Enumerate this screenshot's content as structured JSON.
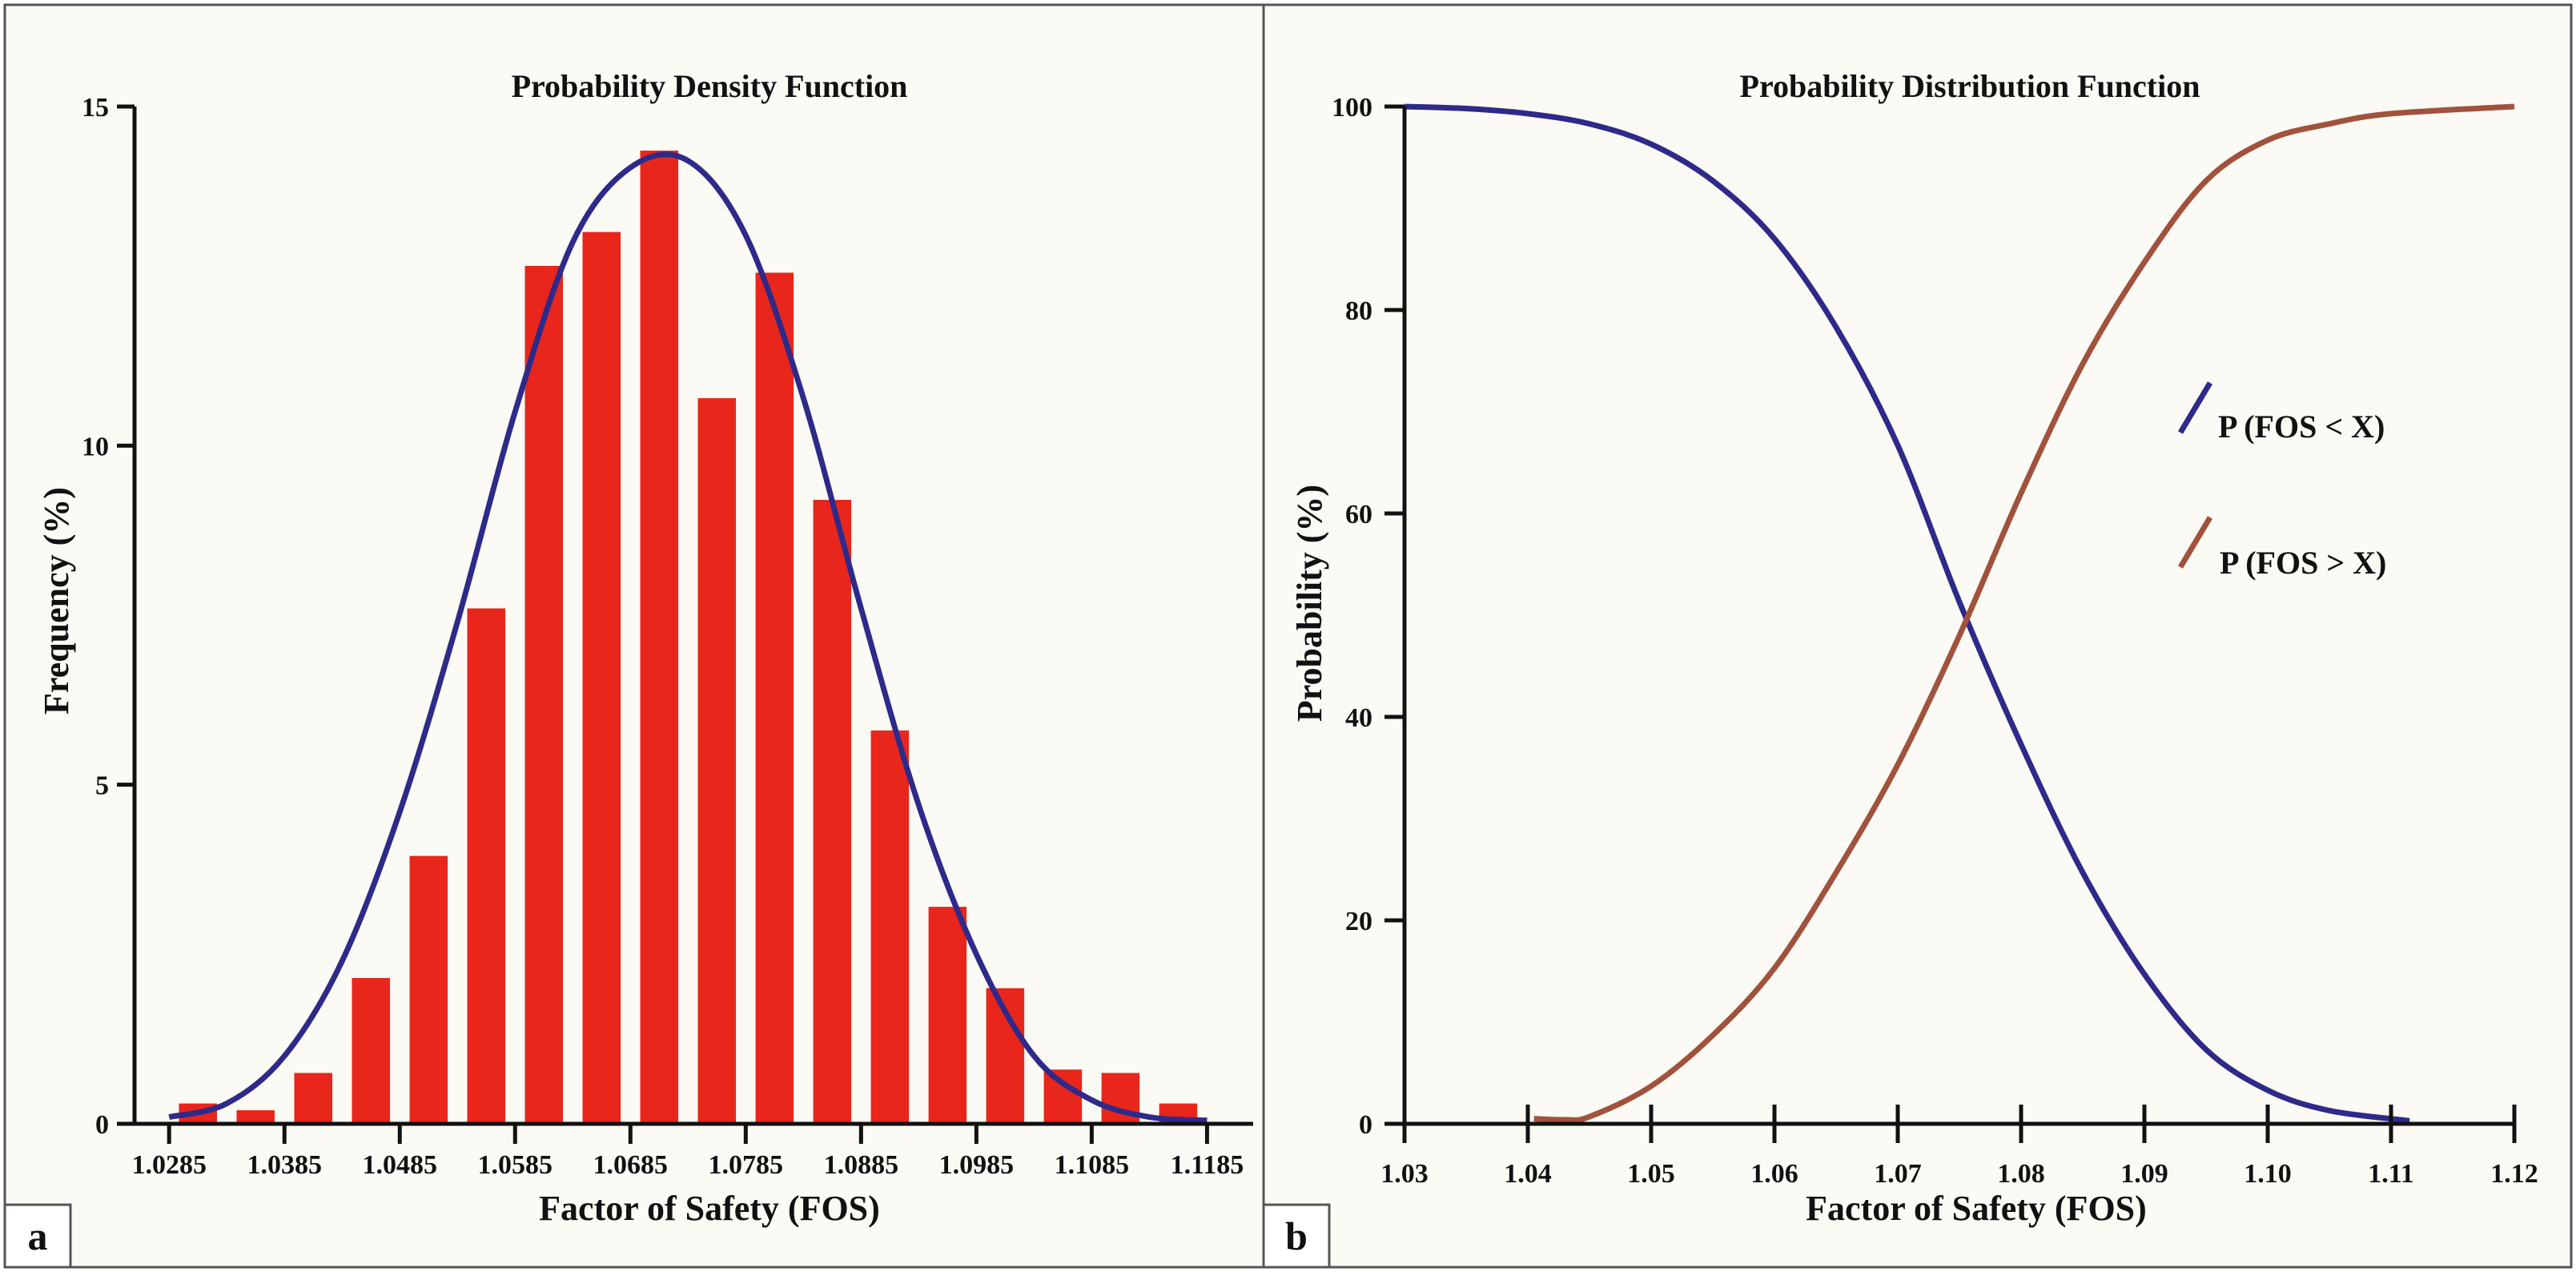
{
  "chart_data": [
    {
      "panel": "a",
      "type": "bar",
      "title": "Probability Density Function",
      "xlabel": "Factor of Safety (FOS)",
      "ylabel": "Frequency (%)",
      "ylim": [
        0,
        15
      ],
      "yticks": [
        0,
        5,
        10,
        15
      ],
      "xticks": [
        "1.0285",
        "1.0385",
        "1.0485",
        "1.0585",
        "1.0685",
        "1.0785",
        "1.0885",
        "1.0985",
        "1.1085",
        "1.1185"
      ],
      "xrange": [
        1.0255,
        1.1225
      ],
      "bar_x": [
        1.031,
        1.036,
        1.041,
        1.046,
        1.051,
        1.056,
        1.061,
        1.066,
        1.071,
        1.076,
        1.081,
        1.086,
        1.091,
        1.096,
        1.101,
        1.106,
        1.111,
        1.116
      ],
      "bar_values": [
        0.3,
        0.2,
        0.75,
        2.15,
        3.95,
        7.6,
        12.65,
        13.15,
        14.35,
        10.7,
        12.55,
        9.2,
        5.8,
        3.2,
        2.0,
        0.8,
        0.75,
        0.3
      ],
      "bar_width": 0.0033,
      "bar_color": "#e8261c",
      "fit_curve": {
        "name": "Normal fit",
        "color": "#2e2a8a",
        "x": [
          1.0285,
          1.0335,
          1.0385,
          1.0435,
          1.0485,
          1.0535,
          1.0585,
          1.0635,
          1.0685,
          1.0735,
          1.0785,
          1.0835,
          1.0885,
          1.0935,
          1.0985,
          1.1035,
          1.1085,
          1.1135,
          1.1185
        ],
        "y": [
          0.1,
          0.3,
          1.0,
          2.4,
          4.6,
          7.4,
          10.5,
          13.0,
          14.1,
          14.2,
          13.1,
          10.7,
          7.6,
          4.7,
          2.5,
          1.0,
          0.35,
          0.1,
          0.05
        ]
      }
    },
    {
      "panel": "b",
      "type": "line",
      "title": "Probability Distribution Function",
      "xlabel": "Factor of Safety (FOS)",
      "ylabel": "Probability (%)",
      "xlim": [
        1.03,
        1.12
      ],
      "ylim": [
        0,
        100
      ],
      "xticks": [
        "1.03",
        "1.04",
        "1.05",
        "1.06",
        "1.07",
        "1.08",
        "1.09",
        "1.10",
        "1.11",
        "1.12"
      ],
      "yticks": [
        0,
        20,
        40,
        60,
        80,
        100
      ],
      "legend_position": "right",
      "series": [
        {
          "name": "P (FOS < X)",
          "color": "#2e2a8a",
          "x": [
            1.03,
            1.035,
            1.04,
            1.045,
            1.05,
            1.055,
            1.06,
            1.065,
            1.07,
            1.075,
            1.08,
            1.085,
            1.09,
            1.095,
            1.1,
            1.105,
            1.1115
          ],
          "y": [
            100,
            99.8,
            99.3,
            98.3,
            96.3,
            92.7,
            87.0,
            78.3,
            66.7,
            51.3,
            37.3,
            24.7,
            14.7,
            7.3,
            3.3,
            1.3,
            0.3
          ]
        },
        {
          "name": "P (FOS > X)",
          "color": "#a0523d",
          "x": [
            1.0405,
            1.043,
            1.045,
            1.05,
            1.055,
            1.06,
            1.065,
            1.07,
            1.075,
            1.08,
            1.085,
            1.09,
            1.095,
            1.1,
            1.105,
            1.11,
            1.12
          ],
          "y": [
            0.5,
            0.4,
            0.7,
            3.7,
            8.7,
            15.3,
            24.7,
            35.3,
            48.0,
            62.0,
            74.7,
            84.7,
            92.7,
            96.7,
            98.3,
            99.3,
            100
          ]
        }
      ]
    }
  ],
  "panel_letters": [
    "a",
    "b"
  ]
}
